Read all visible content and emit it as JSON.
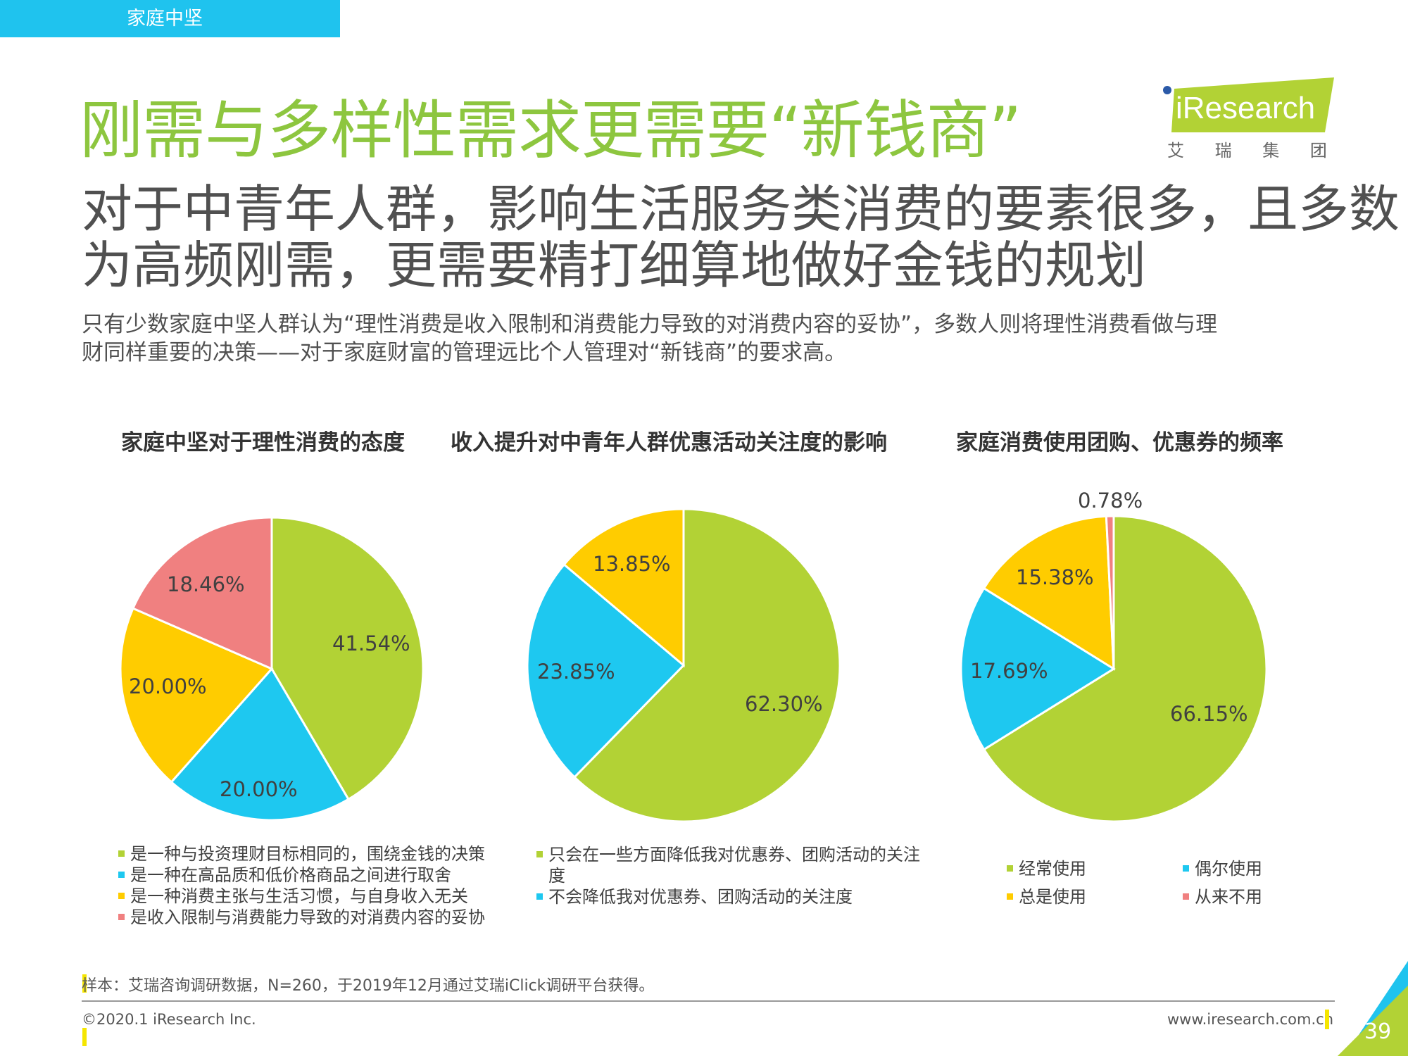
{
  "header": {
    "section_tab": "家庭中坚",
    "title": "刚需与多样性需求更需要“新钱商”",
    "subtitle_lines": [
      "对于中青年人群，影响生活服务类消费的要素很多，且多数",
      "为高频刚需，更需要精打细算地做好金钱的规划"
    ],
    "description_lines": [
      "只有少数家庭中坚人群认为“理性消费是收入限制和消费能力导致的对消费内容的妥协”，多数人则将理性消费看做与理",
      "财同样重要的决策——对于家庭财富的管理远比个人管理对“新钱商”的要求高。"
    ]
  },
  "logo": {
    "brand": "iResearch",
    "cn": "艾 瑞 集 团"
  },
  "colors": {
    "green": "#b2d235",
    "blue": "#1ec8f0",
    "yellow": "#ffcc00",
    "pink": "#f08080",
    "title_green": "#8dc63f",
    "tab_blue": "#1fc3ee"
  },
  "chart_data": [
    {
      "type": "pie",
      "title": "家庭中坚对于理性消费的态度",
      "slices": [
        {
          "label": "是一种与投资理财目标相同的，围绕金钱的决策",
          "value": 41.54,
          "display": "41.54%",
          "color": "#b2d235"
        },
        {
          "label": "是一种在高品质和低价格商品之间进行取舍",
          "value": 20.0,
          "display": "20.00%",
          "color": "#1ec8f0"
        },
        {
          "label": "是一种消费主张与生活习惯，与自身收入无关",
          "value": 20.0,
          "display": "20.00%",
          "color": "#ffcc00"
        },
        {
          "label": "是收入限制与消费能力导致的对消费内容的妥协",
          "value": 18.46,
          "display": "18.46%",
          "color": "#f08080"
        }
      ]
    },
    {
      "type": "pie",
      "title": "收入提升对中青年人群优惠活动关注度的影响",
      "slices": [
        {
          "label": "只会在一些方面降低我对优惠券、团购活动的关注度",
          "value": 62.3,
          "display": "62.30%",
          "color": "#b2d235"
        },
        {
          "label": "不会降低我对优惠券、团购活动的关注度",
          "value": 23.85,
          "display": "23.85%",
          "color": "#1ec8f0"
        },
        {
          "label": "",
          "value": 13.85,
          "display": "13.85%",
          "color": "#ffcc00"
        }
      ]
    },
    {
      "type": "pie",
      "title": "家庭消费使用团购、优惠券的频率",
      "slices": [
        {
          "label": "经常使用",
          "value": 66.15,
          "display": "66.15%",
          "color": "#b2d235"
        },
        {
          "label": "偶尔使用",
          "value": 17.69,
          "display": "17.69%",
          "color": "#1ec8f0"
        },
        {
          "label": "总是使用",
          "value": 15.38,
          "display": "15.38%",
          "color": "#ffcc00"
        },
        {
          "label": "从来不用",
          "value": 0.78,
          "display": "0.78%",
          "color": "#f08080"
        }
      ]
    }
  ],
  "legends": {
    "chart1": [
      {
        "text": "是一种与投资理财目标相同的，围绕金钱的决策",
        "color": "#b2d235"
      },
      {
        "text": "是一种在高品质和低价格商品之间进行取舍",
        "color": "#1ec8f0"
      },
      {
        "text": "是一种消费主张与生活习惯，与自身收入无关",
        "color": "#ffcc00"
      },
      {
        "text": "是收入限制与消费能力导致的对消费内容的妥协",
        "color": "#f08080"
      }
    ],
    "chart2_line1": "只会在一些方面降低我对优惠券、团购活动的关注",
    "chart2_line1_cont": "度",
    "chart2_line2": "不会降低我对优惠券、团购活动的关注度",
    "chart3": [
      "经常使用",
      "偶尔使用",
      "总是使用",
      "从来不用"
    ]
  },
  "footer": {
    "note": "样本：艾瑞咨询调研数据，N=260，于2019年12月通过艾瑞iClick调研平台获得。",
    "copyright": "©2020.1 iResearch Inc.",
    "website": "www.iresearch.com.cn",
    "page_number": "39"
  }
}
